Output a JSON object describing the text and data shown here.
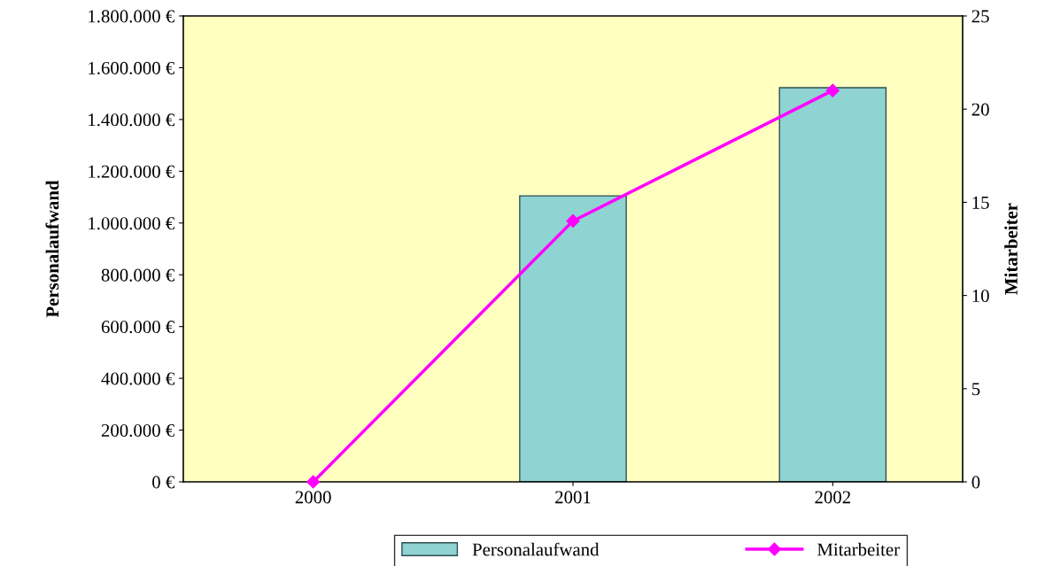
{
  "chart_data": {
    "type": "bar",
    "categories": [
      "2000",
      "2001",
      "2002"
    ],
    "series": [
      {
        "name": "Personalaufwand",
        "color": "#8fd3d3",
        "values": [
          null,
          1105000,
          1523000
        ]
      },
      {
        "name": "Mitarbeiter",
        "type": "line",
        "axis": "y2",
        "color": "#ff00ff",
        "values": [
          0,
          14,
          21
        ]
      }
    ],
    "ylabel": "Personalaufwand",
    "y2label": "Mitarbeiter",
    "ylim": [
      0,
      1800000
    ],
    "yticks": [
      {
        "value": 0,
        "label": "0 €"
      },
      {
        "value": 200000,
        "label": "200.000 €"
      },
      {
        "value": 400000,
        "label": "400.000 €"
      },
      {
        "value": 600000,
        "label": "600.000 €"
      },
      {
        "value": 800000,
        "label": "800.000 €"
      },
      {
        "value": 1000000,
        "label": "1.000.000 €"
      },
      {
        "value": 1200000,
        "label": "1.200.000 €"
      },
      {
        "value": 1400000,
        "label": "1.400.000 €"
      },
      {
        "value": 1600000,
        "label": "1.600.000 €"
      },
      {
        "value": 1800000,
        "label": "1.800.000 €"
      }
    ],
    "y2lim": [
      0,
      25
    ],
    "y2ticks": [
      0,
      5,
      10,
      15,
      20,
      25
    ],
    "marker": "diamond",
    "line_style": "solid",
    "grid": false,
    "legend": "bottom"
  }
}
